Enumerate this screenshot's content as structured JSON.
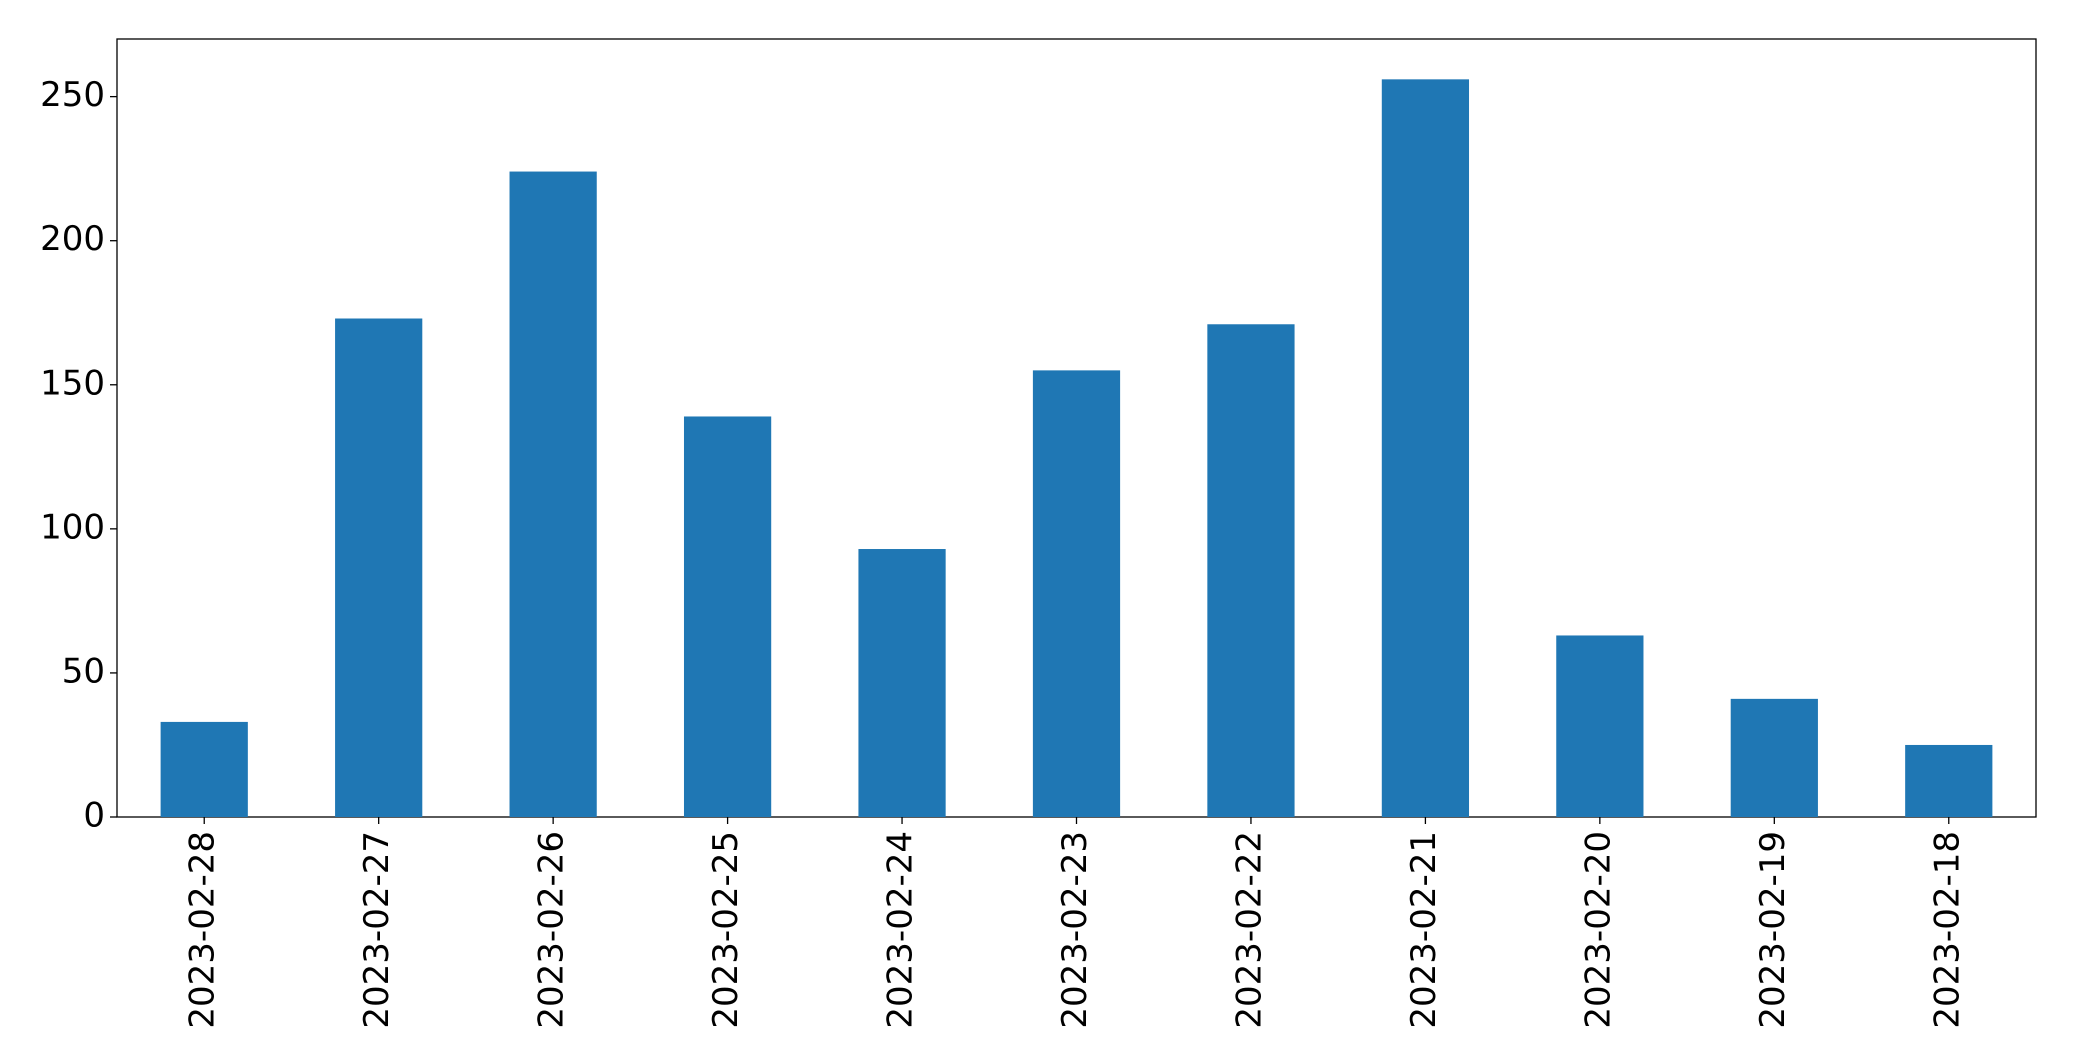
{
  "chart_data": {
    "type": "bar",
    "categories": [
      "2023-02-28",
      "2023-02-27",
      "2023-02-26",
      "2023-02-25",
      "2023-02-24",
      "2023-02-23",
      "2023-02-22",
      "2023-02-21",
      "2023-02-20",
      "2023-02-19",
      "2023-02-18"
    ],
    "values": [
      33,
      173,
      224,
      139,
      93,
      155,
      171,
      256,
      63,
      41,
      25
    ],
    "color": "#1f77b4",
    "ylim": [
      0,
      270
    ],
    "yticks": [
      0,
      50,
      100,
      150,
      200,
      250
    ],
    "grid": false
  }
}
